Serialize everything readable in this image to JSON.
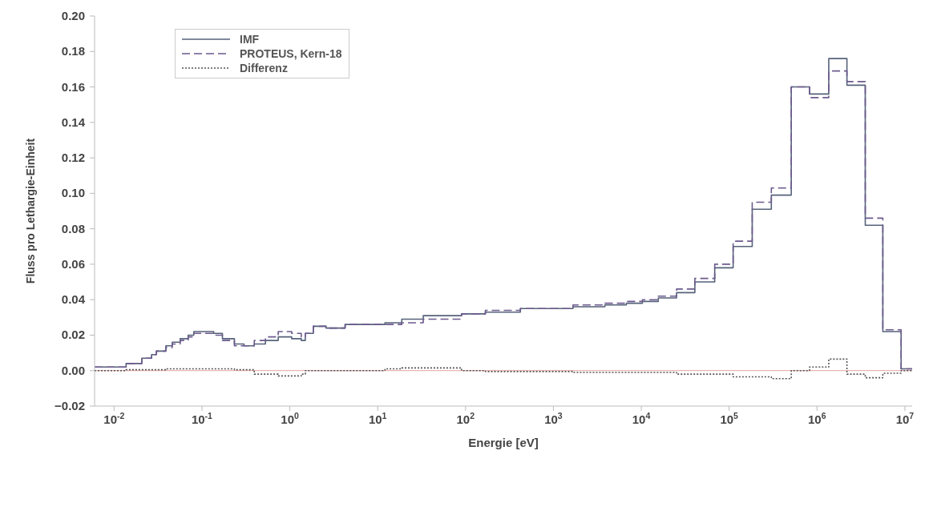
{
  "chart_data": {
    "type": "step",
    "xlabel": "Energie [eV]",
    "ylabel": "Fluss pro Lethargie-Einheit",
    "log": "x",
    "grid": false,
    "legend": "top left",
    "marker": "none",
    "xlim": [
      0.006,
      12100000
    ],
    "xticks": [
      {
        "value": 0.01,
        "label": "10$^{-2}$"
      },
      {
        "value": 0.1,
        "label": "10$^{-1}$"
      },
      {
        "value": 1,
        "label": "10$^{0}$"
      },
      {
        "value": 10,
        "label": "10$^{1}$"
      },
      {
        "value": 100,
        "label": "10$^{2}$"
      },
      {
        "value": 1000,
        "label": "10$^{3}$"
      },
      {
        "value": 10000,
        "label": "10$^{4}$"
      },
      {
        "value": 100000,
        "label": "10$^{5}$"
      },
      {
        "value": 1000000,
        "label": "10$^{6}$"
      },
      {
        "value": 10000000,
        "label": "10$^{7}$"
      }
    ],
    "ylim": [
      -0.02,
      0.2
    ],
    "yticks": [
      {
        "value": -0.02,
        "label": "−0.02"
      },
      {
        "value": 0,
        "label": "0.00"
      },
      {
        "value": 0.02,
        "label": "0.02"
      },
      {
        "value": 0.04,
        "label": "0.04"
      },
      {
        "value": 0.06,
        "label": "0.06"
      },
      {
        "value": 0.08,
        "label": "0.08"
      },
      {
        "value": 0.1,
        "label": "0.10"
      },
      {
        "value": 0.12,
        "label": "0.12"
      },
      {
        "value": 0.14,
        "label": "0.14"
      },
      {
        "value": 0.16,
        "label": "0.16"
      },
      {
        "value": 0.18,
        "label": "0.18"
      },
      {
        "value": 0.2,
        "label": "0.20"
      }
    ],
    "ref_lines": [
      {
        "axis": "y",
        "value": 0,
        "color": "#e8a0a0"
      }
    ],
    "x": [
      0.006,
      0.0137,
      0.0207,
      0.0267,
      0.0303,
      0.0388,
      0.0459,
      0.0565,
      0.0697,
      0.0807,
      0.0993,
      0.136,
      0.171,
      0.234,
      0.301,
      0.394,
      0.528,
      0.738,
      1.05,
      1.35,
      1.5,
      1.85,
      2.58,
      4.26,
      12.1,
      18.8,
      33,
      90,
      168,
      421,
      1670,
      3850,
      6760,
      10300,
      15600,
      25200,
      40700,
      68500,
      111000,
      183000,
      302000,
      509000,
      822000,
      1360000,
      2190000,
      3540000,
      5610000,
      9060000,
      12100000
    ],
    "series": [
      {
        "name": "IMF",
        "color": "#56627a",
        "line_style": "solid",
        "values": [
          0.002,
          0.004,
          0.007,
          0.009,
          0.011,
          0.014,
          0.016,
          0.018,
          0.02,
          0.022,
          0.022,
          0.021,
          0.018,
          0.015,
          0.014,
          0.015,
          0.017,
          0.019,
          0.018,
          0.017,
          0.021,
          0.025,
          0.024,
          0.026,
          0.027,
          0.029,
          0.031,
          0.032,
          0.033,
          0.035,
          0.036,
          0.037,
          0.038,
          0.039,
          0.041,
          0.044,
          0.05,
          0.058,
          0.07,
          0.091,
          0.099,
          0.16,
          0.156,
          0.176,
          0.161,
          0.082,
          0.022,
          0.001,
          0.001
        ]
      },
      {
        "name": "PROTEUS, Kern-18",
        "color": "#6c5a8e",
        "line_style": "dashed",
        "values": [
          0.002,
          0.004,
          0.007,
          0.009,
          0.011,
          0.013,
          0.015,
          0.017,
          0.019,
          0.021,
          0.021,
          0.02,
          0.017,
          0.014,
          0.014,
          0.017,
          0.019,
          0.022,
          0.021,
          0.019,
          0.021,
          0.025,
          0.024,
          0.026,
          0.026,
          0.027,
          0.029,
          0.032,
          0.034,
          0.035,
          0.037,
          0.038,
          0.039,
          0.04,
          0.042,
          0.046,
          0.052,
          0.06,
          0.073,
          0.095,
          0.103,
          0.16,
          0.154,
          0.169,
          0.163,
          0.086,
          0.023,
          0.001,
          0.001
        ]
      },
      {
        "name": "Differenz",
        "color": "#555555",
        "line_style": "dotted",
        "values": [
          0.0,
          0.0005,
          0.0005,
          0.0005,
          0.0005,
          0.001,
          0.001,
          0.001,
          0.001,
          0.001,
          0.001,
          0.001,
          0.001,
          0.0005,
          0.0005,
          -0.002,
          -0.002,
          -0.003,
          -0.003,
          -0.002,
          0.0,
          0.0,
          0.0,
          0.0,
          0.001,
          0.0015,
          0.0015,
          0.0,
          -0.0005,
          -0.0005,
          -0.001,
          -0.001,
          -0.001,
          -0.001,
          -0.001,
          -0.002,
          -0.002,
          -0.002,
          -0.0035,
          -0.0035,
          -0.0045,
          0.0,
          0.002,
          0.0065,
          -0.002,
          -0.004,
          -0.0015,
          0.0,
          0.0
        ]
      }
    ]
  }
}
